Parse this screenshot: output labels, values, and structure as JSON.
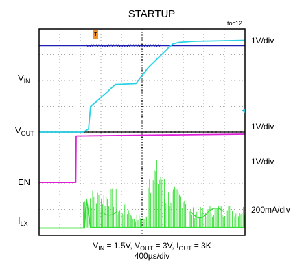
{
  "chart_data": {
    "type": "line",
    "title": "STARTUP",
    "figure_id": "toc12",
    "timebase": "400µs/div",
    "conditions": {
      "vin_label": "V",
      "vin_sub": "IN",
      "vin_val": " = 1.5V, ",
      "vout_label": "V",
      "vout_sub": "OUT",
      "vout_val": " = 3V, ",
      "iout_label": "I",
      "iout_sub": "OUT",
      "iout_val": " = 3K"
    },
    "x_divisions": 10,
    "y_divisions": 8,
    "trigger_marker": "T",
    "channels": [
      {
        "name_main": "V",
        "name_sub": "IN",
        "scale": "1V/div",
        "color": "#1f1fb4",
        "points": [
          [
            0,
            7.35
          ],
          [
            10,
            7.35
          ]
        ]
      },
      {
        "name_main": "V",
        "name_sub": "OUT",
        "scale": "1V/div",
        "color": "#29d3e6",
        "points": [
          [
            0,
            4.0
          ],
          [
            2.15,
            4.0
          ],
          [
            2.4,
            4.12
          ],
          [
            2.5,
            5.0
          ],
          [
            2.8,
            5.2
          ],
          [
            3.3,
            5.55
          ],
          [
            3.7,
            5.85
          ],
          [
            4.7,
            5.88
          ],
          [
            5.3,
            6.5
          ],
          [
            6.3,
            7.28
          ],
          [
            6.5,
            7.42
          ],
          [
            6.8,
            7.48
          ],
          [
            7.5,
            7.52
          ],
          [
            10,
            7.56
          ]
        ]
      },
      {
        "name_main": "EN",
        "name_sub": "",
        "scale": "1V/div",
        "color": "#e020d8",
        "points": [
          [
            0,
            2.05
          ],
          [
            1.78,
            2.05
          ],
          [
            1.8,
            3.85
          ],
          [
            10,
            3.92
          ]
        ]
      },
      {
        "name_main": "I",
        "name_sub": "LX",
        "scale": "200mA/div",
        "color": "#33dd33",
        "points": [
          [
            0,
            0.28
          ],
          [
            2.2,
            0.28
          ],
          [
            2.3,
            1.4
          ],
          [
            2.5,
            0.3
          ],
          [
            10,
            0.3
          ]
        ]
      }
    ]
  }
}
